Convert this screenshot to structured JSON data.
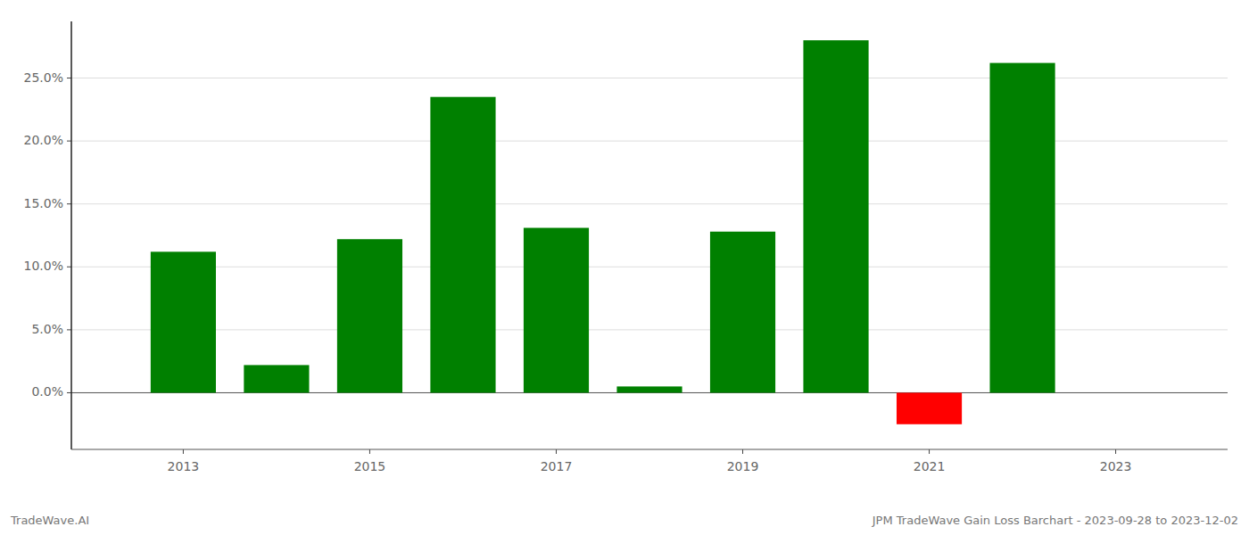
{
  "chart_data": {
    "type": "bar",
    "x": [
      2013,
      2014,
      2015,
      2016,
      2017,
      2018,
      2019,
      2020,
      2021,
      2022
    ],
    "values": [
      0.112,
      0.022,
      0.122,
      0.235,
      0.131,
      0.005,
      0.128,
      0.28,
      -0.025,
      0.262
    ],
    "colors": [
      "#008000",
      "#008000",
      "#008000",
      "#008000",
      "#008000",
      "#008000",
      "#008000",
      "#008000",
      "#ff0000",
      "#008000"
    ],
    "xlim": [
      2011.8,
      2024.2
    ],
    "xticks": [
      2013,
      2015,
      2017,
      2019,
      2021,
      2023
    ],
    "ylim": [
      -0.045,
      0.295
    ],
    "yticks": [
      {
        "value": 0.0,
        "label": "0.0%"
      },
      {
        "value": 0.05,
        "label": "5.0%"
      },
      {
        "value": 0.1,
        "label": "10.0%"
      },
      {
        "value": 0.15,
        "label": "15.0%"
      },
      {
        "value": 0.2,
        "label": "20.0%"
      },
      {
        "value": 0.25,
        "label": "25.0%"
      }
    ],
    "grid": true,
    "annotations": [
      "TradeWave.AI",
      "JPM TradeWave Gain Loss Barchart - 2023-09-28 to 2023-12-02"
    ]
  }
}
